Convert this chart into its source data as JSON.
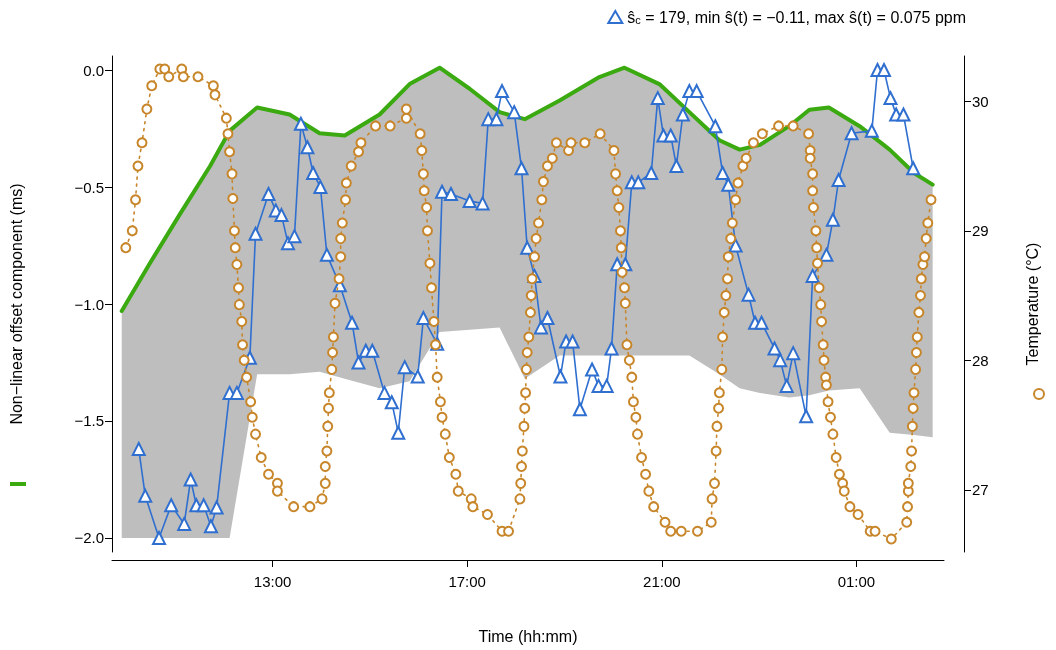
{
  "chart_data": {
    "type": "line",
    "xlabel": "Time (hh:mm)",
    "ylabel": "Non−linear offset component (ms)",
    "y2label": "Temperature (°C)",
    "legend": "top right",
    "xlim": [
      "--01-01T09:42",
      "--01-02T02:48"
    ],
    "xticks": [
      {
        "value": "--01-01T13:00",
        "label": "13:00"
      },
      {
        "value": "--01-01T17:00",
        "label": "17:00"
      },
      {
        "value": "--01-01T21:00",
        "label": "21:00"
      },
      {
        "value": "--01-02T01:00",
        "label": "01:00"
      }
    ],
    "ylim": [
      -2.06,
      0.06
    ],
    "yticks": [
      {
        "value": -2,
        "label": "−2.0"
      },
      {
        "value": -1.5,
        "label": "−1.5"
      },
      {
        "value": -1,
        "label": "−1.0"
      },
      {
        "value": -0.5,
        "label": "−0.5"
      },
      {
        "value": 0,
        "label": "0.0"
      }
    ],
    "y2lim": [
      26.52,
      30.35
    ],
    "y2ticks": [
      27,
      28,
      29,
      30
    ],
    "series": [
      {
        "color": "#3aaa10",
        "marker": "none",
        "line_style": "solid",
        "x": [
          "--01-01T09:54",
          "--01-01T10:28",
          "--01-01T11:05",
          "--01-01T11:43",
          "--01-01T12:07",
          "--01-01T12:41",
          "--01-01T13:21",
          "--01-01T13:58",
          "--01-01T14:29",
          "--01-01T15:12",
          "--01-01T15:49",
          "--01-01T16:26",
          "--01-01T17:03",
          "--01-01T17:40",
          "--01-01T18:11",
          "--01-01T18:54",
          "--01-01T19:43",
          "--01-01T20:14",
          "--01-01T20:57",
          "--01-01T21:34",
          "--01-01T22:11",
          "--01-01T22:36",
          "--01-01T23:01",
          "--01-01T23:37",
          "--01-02T00:02",
          "--01-02T00:26",
          "--01-02T01:04",
          "--01-02T01:41",
          "--01-02T02:11",
          "--01-02T02:34"
        ],
        "values": [
          -1.03,
          -0.83,
          -0.62,
          -0.41,
          -0.26,
          -0.16,
          -0.19,
          -0.27,
          -0.28,
          -0.19,
          -0.06,
          0.01,
          -0.08,
          -0.18,
          -0.21,
          -0.13,
          -0.03,
          0.01,
          -0.06,
          -0.18,
          -0.3,
          -0.34,
          -0.32,
          -0.24,
          -0.17,
          -0.16,
          -0.24,
          -0.34,
          -0.44,
          -0.49
        ],
        "upper": [
          -1.03,
          -0.83,
          -0.62,
          -0.41,
          -0.26,
          -0.16,
          -0.19,
          -0.27,
          -0.28,
          -0.19,
          -0.06,
          0.01,
          -0.08,
          -0.18,
          -0.21,
          -0.13,
          -0.03,
          0.01,
          -0.06,
          -0.18,
          -0.3,
          -0.34,
          -0.32,
          -0.24,
          -0.17,
          -0.16,
          -0.24,
          -0.34,
          -0.44,
          -0.49
        ],
        "lower": [
          -2.0,
          -2.0,
          -2.0,
          -2.0,
          -2.0,
          -1.3,
          -1.3,
          -1.29,
          -1.32,
          -1.36,
          -1.33,
          -1.12,
          -1.11,
          -1.1,
          -1.32,
          -1.22,
          -1.22,
          -1.22,
          -1.22,
          -1.22,
          -1.3,
          -1.36,
          -1.38,
          -1.4,
          -1.39,
          -1.37,
          -1.36,
          -1.55,
          -1.56,
          -1.57
        ]
      },
      {
        "name": "ŝ$_{c}$ = 179, min ŝ(t) = −0.11, max ŝ(t) = 0.075 ppm",
        "color": "#2f6fd0",
        "marker": "triangle",
        "line_style": "solid",
        "x": [
          "--01-01T10:15",
          "--01-01T10:23",
          "--01-01T10:40",
          "--01-01T10:55",
          "--01-01T11:11",
          "--01-01T11:19",
          "--01-01T11:26",
          "--01-01T11:35",
          "--01-01T11:44",
          "--01-01T11:51",
          "--01-01T12:07",
          "--01-01T12:16",
          "--01-01T12:32",
          "--01-01T12:39",
          "--01-01T12:55",
          "--01-01T13:04",
          "--01-01T13:11",
          "--01-01T13:19",
          "--01-01T13:27",
          "--01-01T13:35",
          "--01-01T13:43",
          "--01-01T13:50",
          "--01-01T13:59",
          "--01-01T14:07",
          "--01-01T14:23",
          "--01-01T14:38",
          "--01-01T14:46",
          "--01-01T14:55",
          "--01-01T15:03",
          "--01-01T15:18",
          "--01-01T15:27",
          "--01-01T15:35",
          "--01-01T15:43",
          "--01-01T15:59",
          "--01-01T16:06",
          "--01-01T16:23",
          "--01-01T16:29",
          "--01-01T16:40",
          "--01-01T17:03",
          "--01-01T17:19",
          "--01-01T17:26",
          "--01-01T17:36",
          "--01-01T17:43",
          "--01-01T17:58",
          "--01-01T18:07",
          "--01-01T18:14",
          "--01-01T18:23",
          "--01-01T18:31",
          "--01-01T18:39",
          "--01-01T18:55",
          "--01-01T19:02",
          "--01-01T19:10",
          "--01-01T19:19",
          "--01-01T19:34",
          "--01-01T19:42",
          "--01-01T19:52",
          "--01-01T19:58",
          "--01-01T20:05",
          "--01-01T20:15",
          "--01-01T20:23",
          "--01-01T20:31",
          "--01-01T20:47",
          "--01-01T20:55",
          "--01-01T21:02",
          "--01-01T21:11",
          "--01-01T21:18",
          "--01-01T21:26",
          "--01-01T21:34",
          "--01-01T21:43",
          "--01-01T22:06",
          "--01-01T22:15",
          "--01-01T22:22",
          "--01-01T22:31",
          "--01-01T22:47",
          "--01-01T22:55",
          "--01-01T23:03",
          "--01-01T23:19",
          "--01-01T23:26",
          "--01-01T23:34",
          "--01-01T23:42",
          "--01-01T23:58",
          "--01-02T00:06",
          "--01-02T00:23",
          "--01-02T00:31",
          "--01-02T00:38",
          "--01-02T00:54",
          "--01-02T01:19",
          "--01-02T01:26",
          "--01-02T01:34",
          "--01-02T01:42",
          "--01-02T01:49",
          "--01-02T01:58",
          "--01-02T02:10"
        ],
        "values": [
          -1.62,
          -1.82,
          -2.0,
          -1.86,
          -1.94,
          -1.75,
          -1.86,
          -1.86,
          -1.95,
          -1.87,
          -1.38,
          -1.38,
          -1.23,
          -0.7,
          -0.53,
          -0.6,
          -0.62,
          -0.74,
          -0.71,
          -0.23,
          -0.33,
          -0.44,
          -0.5,
          -0.79,
          -0.92,
          -1.08,
          -1.25,
          -1.2,
          -1.2,
          -1.38,
          -1.42,
          -1.55,
          -1.27,
          -1.31,
          -1.06,
          -1.17,
          -0.52,
          -0.53,
          -0.56,
          -0.57,
          -0.21,
          -0.21,
          -0.09,
          -0.18,
          -0.42,
          -0.76,
          -0.88,
          -1.1,
          -1.06,
          -1.31,
          -1.16,
          -1.16,
          -1.45,
          -1.28,
          -1.35,
          -1.35,
          -1.19,
          -0.83,
          -0.83,
          -0.48,
          -0.48,
          -0.44,
          -0.12,
          -0.28,
          -0.28,
          -0.41,
          -0.19,
          -0.09,
          -0.09,
          -0.24,
          -0.44,
          -0.49,
          -0.75,
          -0.96,
          -1.08,
          -1.08,
          -1.19,
          -1.24,
          -1.35,
          -1.21,
          -1.48,
          -0.88,
          -0.79,
          -0.64,
          -0.47,
          -0.27,
          -0.26,
          0.0,
          0.0,
          -0.12,
          -0.19,
          -0.19,
          -0.42
        ]
      },
      {
        "color": "#c8862a",
        "axis": "y2",
        "marker": "circle",
        "line_style": "dotted",
        "x": [
          "--01-01T09:59",
          "--01-01T10:07",
          "--01-01T10:11",
          "--01-01T10:14",
          "--01-01T10:19",
          "--01-01T10:25",
          "--01-01T10:31",
          "--01-01T10:41",
          "--01-01T10:47",
          "--01-01T10:52",
          "--01-01T11:08",
          "--01-01T11:10",
          "--01-01T11:28",
          "--01-01T11:47",
          "--01-01T11:49",
          "--01-01T12:03",
          "--01-01T12:05",
          "--01-01T12:07",
          "--01-01T12:10",
          "--01-01T12:11",
          "--01-01T12:13",
          "--01-01T12:14",
          "--01-01T12:16",
          "--01-01T12:18",
          "--01-01T12:19",
          "--01-01T12:22",
          "--01-01T12:23",
          "--01-01T12:25",
          "--01-01T12:28",
          "--01-01T12:33",
          "--01-01T12:35",
          "--01-01T12:39",
          "--01-01T12:46",
          "--01-01T12:55",
          "--01-01T13:06",
          "--01-01T13:06",
          "--01-01T13:26",
          "--01-01T13:46",
          "--01-01T14:01",
          "--01-01T14:05",
          "--01-01T14:05",
          "--01-01T14:07",
          "--01-01T14:08",
          "--01-01T14:09",
          "--01-01T14:10",
          "--01-01T14:13",
          "--01-01T14:14",
          "--01-01T14:15",
          "--01-01T14:17",
          "--01-01T14:22",
          "--01-01T14:24",
          "--01-01T14:24",
          "--01-01T14:26",
          "--01-01T14:30",
          "--01-01T14:31",
          "--01-01T14:37",
          "--01-01T14:46",
          "--01-01T14:49",
          "--01-01T15:07",
          "--01-01T15:25",
          "--01-01T15:45",
          "--01-01T15:45",
          "--01-01T16:02",
          "--01-01T16:04",
          "--01-01T16:06",
          "--01-01T16:07",
          "--01-01T16:10",
          "--01-01T16:11",
          "--01-01T16:14",
          "--01-01T16:16",
          "--01-01T16:19",
          "--01-01T16:21",
          "--01-01T16:23",
          "--01-01T16:27",
          "--01-01T16:29",
          "--01-01T16:33",
          "--01-01T16:38",
          "--01-01T16:46",
          "--01-01T16:49",
          "--01-01T17:05",
          "--01-01T17:07",
          "--01-01T17:25",
          "--01-01T17:43",
          "--01-01T17:51",
          "--01-01T18:05",
          "--01-01T18:06",
          "--01-01T18:07",
          "--01-01T18:08",
          "--01-01T18:10",
          "--01-01T18:11",
          "--01-01T18:12",
          "--01-01T18:13",
          "--01-01T18:14",
          "--01-01T18:16",
          "--01-01T18:18",
          "--01-01T18:19",
          "--01-01T18:20",
          "--01-01T18:23",
          "--01-01T18:25",
          "--01-01T18:28",
          "--01-01T18:32",
          "--01-01T18:34",
          "--01-01T18:39",
          "--01-01T18:45",
          "--01-01T18:50",
          "--01-01T19:05",
          "--01-01T19:08",
          "--01-01T19:25",
          "--01-01T19:44",
          "--01-01T20:01",
          "--01-01T20:03",
          "--01-01T20:05",
          "--01-01T20:07",
          "--01-01T20:09",
          "--01-01T20:10",
          "--01-01T20:11",
          "--01-01T20:14",
          "--01-01T20:15",
          "--01-01T20:17",
          "--01-01T20:20",
          "--01-01T20:23",
          "--01-01T20:25",
          "--01-01T20:28",
          "--01-01T20:30",
          "--01-01T20:35",
          "--01-01T20:40",
          "--01-01T20:44",
          "--01-01T20:50",
          "--01-01T21:04",
          "--01-01T21:11",
          "--01-01T21:24",
          "--01-01T21:44",
          "--01-01T22:01",
          "--01-01T22:02",
          "--01-01T22:05",
          "--01-01T22:07",
          "--01-01T22:08",
          "--01-01T22:10",
          "--01-01T22:11",
          "--01-01T22:14",
          "--01-01T22:15",
          "--01-01T22:17",
          "--01-01T22:19",
          "--01-01T22:21",
          "--01-01T22:22",
          "--01-01T22:25",
          "--01-01T22:27",
          "--01-01T22:31",
          "--01-01T22:34",
          "--01-01T22:40",
          "--01-01T22:44",
          "--01-01T22:53",
          "--01-01T23:04",
          "--01-01T23:24",
          "--01-01T23:42",
          "--01-02T00:01",
          "--01-02T00:03",
          "--01-02T00:03",
          "--01-02T00:06",
          "--01-02T00:06",
          "--01-02T00:07",
          "--01-02T00:10",
          "--01-02T00:11",
          "--01-02T00:12",
          "--01-02T00:14",
          "--01-02T00:16",
          "--01-02T00:17",
          "--01-02T00:19",
          "--01-02T00:20",
          "--01-02T00:22",
          "--01-02T00:23",
          "--01-02T00:25",
          "--01-02T00:28",
          "--01-02T00:31",
          "--01-02T00:35",
          "--01-02T00:39",
          "--01-02T00:43",
          "--01-02T00:45",
          "--01-02T00:52",
          "--01-02T01:02",
          "--01-02T01:17",
          "--01-02T01:23",
          "--01-02T01:43",
          "--01-02T02:02",
          "--01-02T02:03",
          "--01-02T02:04",
          "--01-02T02:04",
          "--01-02T02:07",
          "--01-02T02:08",
          "--01-02T02:09",
          "--01-02T02:10",
          "--01-02T02:11",
          "--01-02T02:13",
          "--01-02T02:14",
          "--01-02T02:15",
          "--01-02T02:17",
          "--01-02T02:19",
          "--01-02T02:20",
          "--01-02T02:22",
          "--01-02T02:24",
          "--01-02T02:26",
          "--01-02T02:28",
          "--01-02T02:32"
        ],
        "values": [
          28.87,
          29.0,
          29.24,
          29.5,
          29.68,
          29.94,
          30.12,
          30.25,
          30.25,
          30.19,
          30.25,
          30.19,
          30.19,
          30.12,
          30.05,
          29.87,
          29.75,
          29.61,
          29.44,
          29.25,
          29.0,
          28.87,
          28.74,
          28.56,
          28.43,
          28.3,
          28.12,
          28.0,
          27.87,
          27.68,
          27.56,
          27.43,
          27.25,
          27.12,
          27.05,
          26.99,
          26.87,
          26.87,
          26.93,
          27.05,
          27.18,
          27.3,
          27.49,
          27.63,
          27.75,
          27.93,
          28.06,
          28.18,
          28.44,
          28.63,
          28.8,
          28.94,
          29.06,
          29.24,
          29.37,
          29.5,
          29.61,
          29.68,
          29.81,
          29.81,
          29.87,
          29.94,
          29.75,
          29.62,
          29.44,
          29.31,
          29.18,
          29.0,
          28.75,
          28.56,
          28.3,
          28.12,
          27.87,
          27.68,
          27.56,
          27.43,
          27.25,
          27.12,
          26.99,
          26.93,
          26.87,
          26.81,
          26.68,
          26.68,
          26.93,
          27.05,
          27.18,
          27.3,
          27.49,
          27.63,
          27.75,
          27.93,
          28.06,
          28.18,
          28.37,
          28.5,
          28.63,
          28.8,
          28.94,
          29.06,
          29.24,
          29.38,
          29.5,
          29.56,
          29.68,
          29.62,
          29.68,
          29.68,
          29.75,
          29.62,
          29.44,
          29.31,
          29.18,
          29.0,
          28.87,
          28.68,
          28.56,
          28.44,
          28.12,
          28.0,
          27.87,
          27.68,
          27.56,
          27.43,
          27.25,
          27.12,
          26.99,
          26.87,
          26.75,
          26.68,
          26.68,
          26.68,
          26.75,
          26.93,
          27.05,
          27.3,
          27.49,
          27.63,
          27.75,
          27.93,
          28.18,
          28.37,
          28.5,
          28.63,
          28.8,
          28.94,
          29.06,
          29.24,
          29.37,
          29.5,
          29.56,
          29.68,
          29.75,
          29.81,
          29.81,
          29.75,
          29.62,
          29.56,
          29.44,
          29.31,
          29.18,
          29.0,
          28.87,
          28.75,
          28.56,
          28.43,
          28.3,
          28.12,
          28.0,
          27.87,
          27.81,
          27.68,
          27.56,
          27.43,
          27.25,
          27.12,
          27.05,
          26.99,
          26.87,
          26.81,
          26.68,
          26.68,
          26.62,
          26.75,
          26.87,
          26.99,
          27.05,
          27.18,
          27.3,
          27.49,
          27.63,
          27.75,
          27.93,
          28.06,
          28.18,
          28.37,
          28.5,
          28.63,
          28.74,
          28.8,
          28.94,
          29.06,
          29.24
        ]
      }
    ]
  }
}
